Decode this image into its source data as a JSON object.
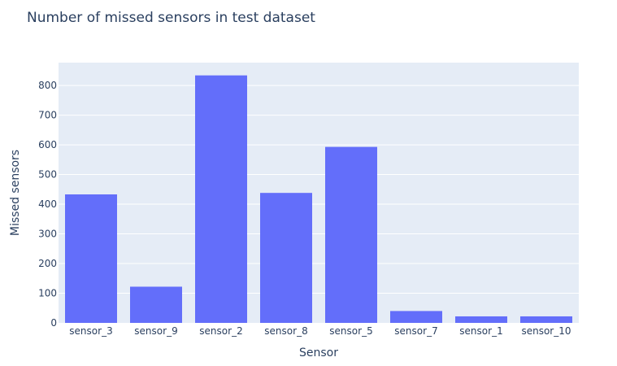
{
  "chart_data": {
    "type": "bar",
    "title": "Number of missed sensors in test dataset",
    "xlabel": "Sensor",
    "ylabel": "Missed sensors",
    "categories": [
      "sensor_3",
      "sensor_9",
      "sensor_2",
      "sensor_8",
      "sensor_5",
      "sensor_7",
      "sensor_1",
      "sensor_10"
    ],
    "values": [
      433,
      122,
      834,
      438,
      593,
      40,
      22,
      22
    ],
    "ylim": [
      0,
      877
    ],
    "yticks": [
      0,
      100,
      200,
      300,
      400,
      500,
      600,
      700,
      800
    ],
    "grid": true,
    "legend": "none",
    "colors": {
      "bar": "#636efa",
      "plot_background": "#e5ecf6",
      "gridline": "#ffffff",
      "text": "#2a3f5f"
    }
  }
}
